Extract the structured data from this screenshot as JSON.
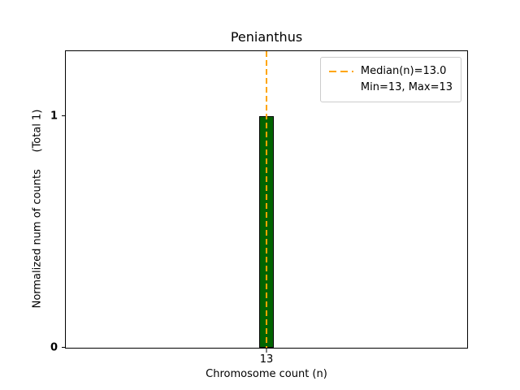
{
  "chart_data": {
    "type": "bar",
    "title": "Penianthus",
    "xlabel": "Chromosome count (n)",
    "ylabel": "Normalized num of counts     (Total 1)",
    "categories": [
      "13"
    ],
    "values": [
      1
    ],
    "ylim": [
      0,
      1.28
    ],
    "yticks": [
      0,
      1
    ],
    "ytick_labels": [
      "0",
      "1"
    ],
    "xtick_labels": [
      "13"
    ],
    "grid": false,
    "bar_color": "#006400",
    "bar_edge_color": "#000000",
    "median_line": {
      "x": 13,
      "color": "#FFA500",
      "style": "dashed"
    },
    "legend": {
      "position": "upper right",
      "entries": [
        "Median(n)=13.0",
        "Min=13, Max=13"
      ]
    }
  }
}
